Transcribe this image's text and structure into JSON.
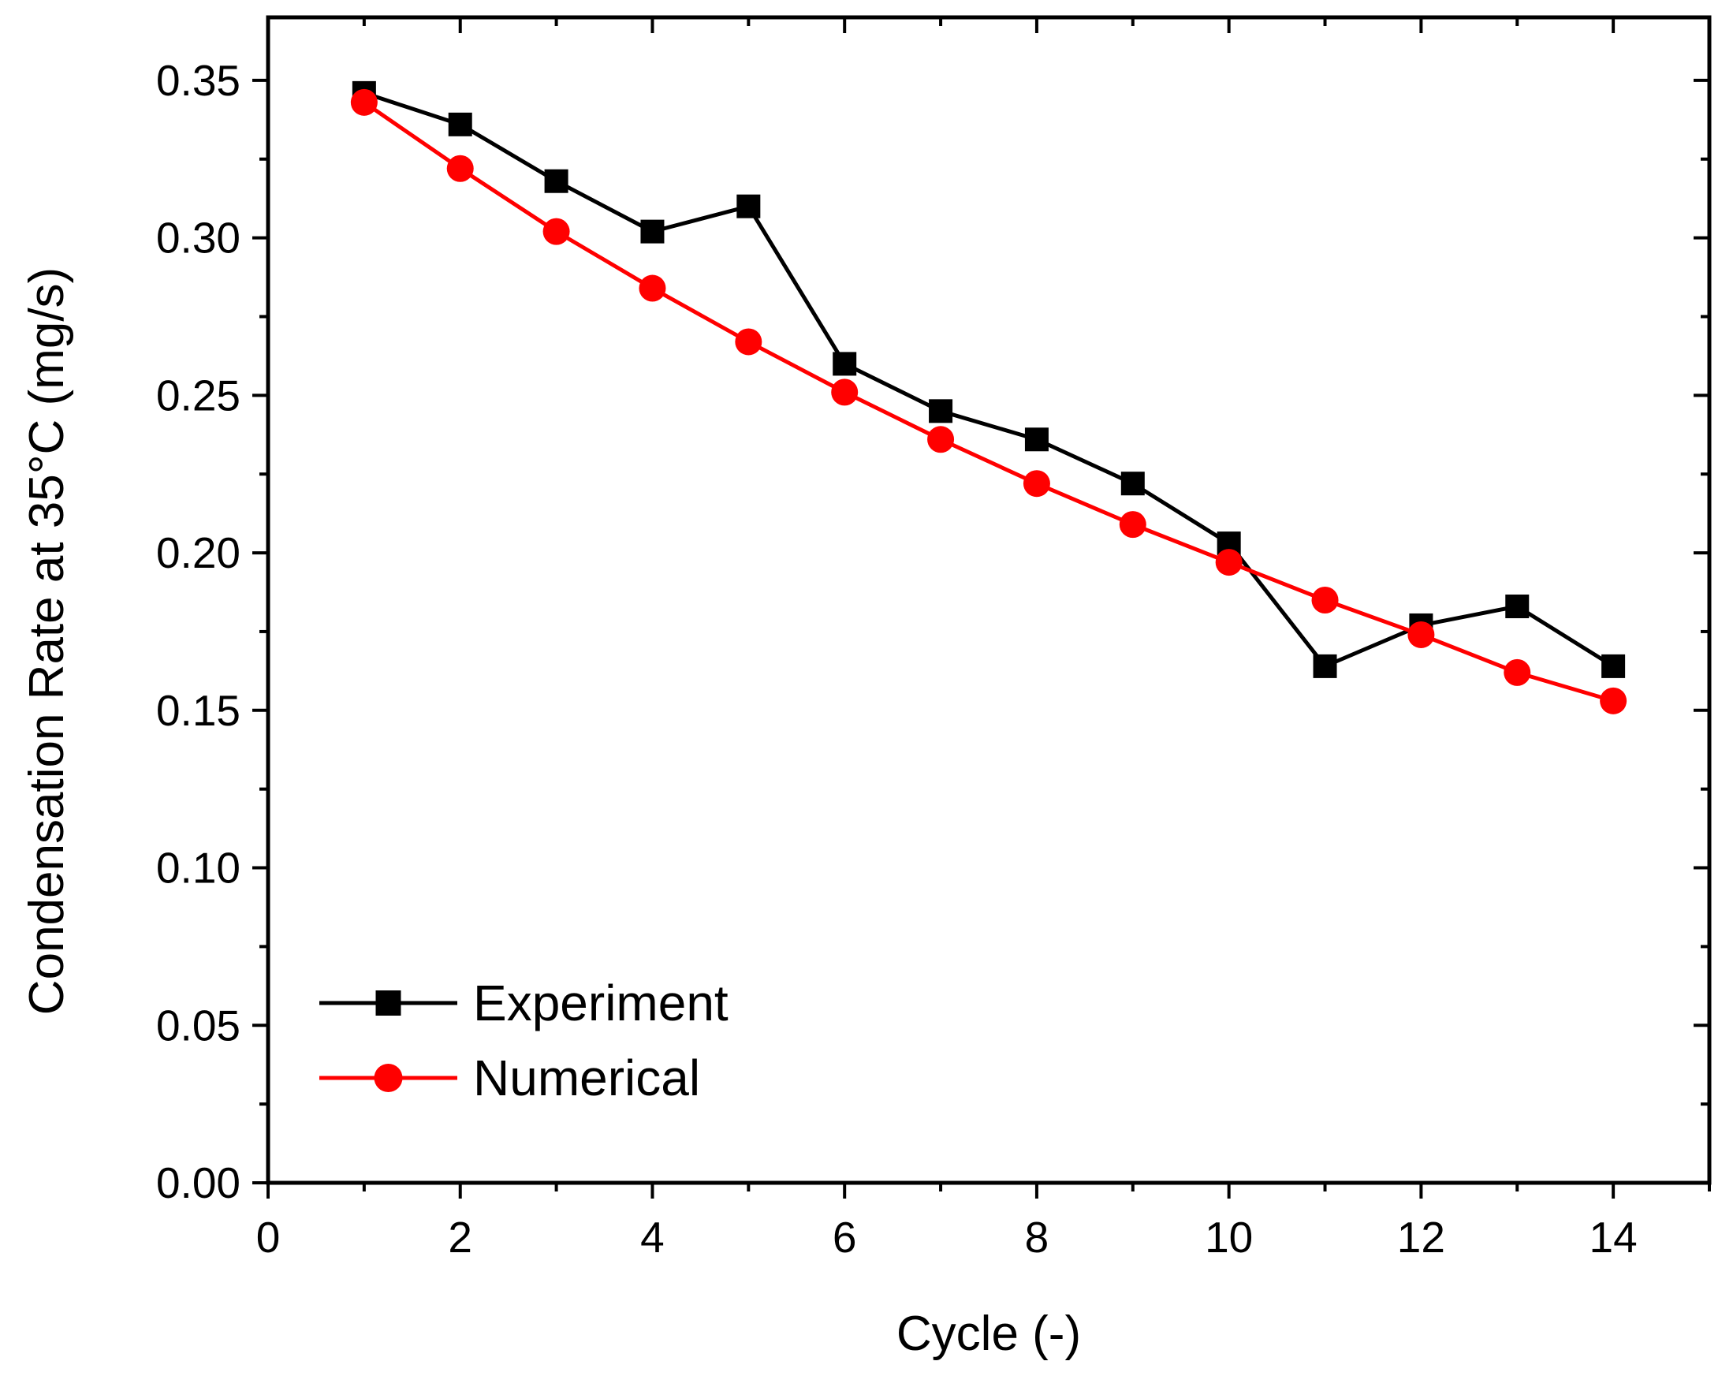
{
  "chart_data": {
    "type": "line",
    "title": "",
    "xlabel": "Cycle (-)",
    "ylabel": "Condensation Rate at 35°C (mg/s)",
    "xlim": [
      0,
      15
    ],
    "ylim": [
      0,
      0.37
    ],
    "x_ticks": [
      0,
      2,
      4,
      6,
      8,
      10,
      12,
      14
    ],
    "x_tick_labels": [
      "0",
      "2",
      "4",
      "6",
      "8",
      "10",
      "12",
      "14"
    ],
    "x_minor_ticks": [
      1,
      3,
      5,
      7,
      9,
      11,
      13,
      15
    ],
    "y_ticks": [
      0,
      0.05,
      0.1,
      0.15,
      0.2,
      0.25,
      0.3,
      0.35
    ],
    "y_tick_labels": [
      "0.00",
      "0.05",
      "0.10",
      "0.15",
      "0.20",
      "0.25",
      "0.30",
      "0.35"
    ],
    "y_minor_ticks": [
      0.025,
      0.075,
      0.125,
      0.175,
      0.225,
      0.275,
      0.325
    ],
    "grid": false,
    "legend_position": "bottom-left",
    "series": [
      {
        "name": "Experiment",
        "color": "#000000",
        "marker": "square",
        "x": [
          1,
          2,
          3,
          4,
          5,
          6,
          7,
          8,
          9,
          10,
          11,
          12,
          13,
          14
        ],
        "values": [
          0.346,
          0.336,
          0.318,
          0.302,
          0.31,
          0.26,
          0.245,
          0.236,
          0.222,
          0.203,
          0.164,
          0.177,
          0.183,
          0.164
        ]
      },
      {
        "name": "Numerical",
        "color": "#ff0000",
        "marker": "circle",
        "x": [
          1,
          2,
          3,
          4,
          5,
          6,
          7,
          8,
          9,
          10,
          11,
          12,
          13,
          14
        ],
        "values": [
          0.343,
          0.322,
          0.302,
          0.284,
          0.267,
          0.251,
          0.236,
          0.222,
          0.209,
          0.197,
          0.185,
          0.174,
          0.162,
          0.153
        ]
      }
    ]
  }
}
